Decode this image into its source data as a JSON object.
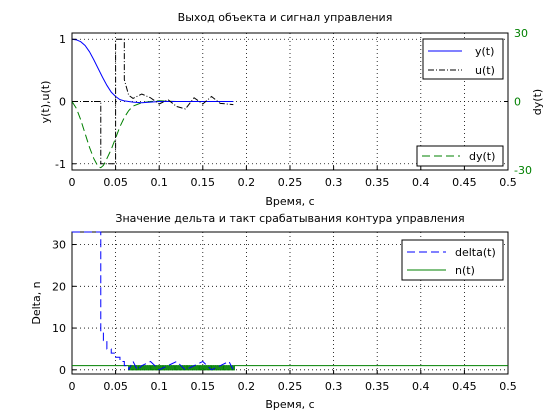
{
  "chart_data": [
    {
      "type": "line",
      "title": "Выход объекта и сигнал управления",
      "xlabel": "Время, с",
      "ylabel": "y(t),u(t)",
      "y2label": "dy(t)",
      "xlim": [
        0,
        0.5
      ],
      "ylim": [
        -1.1,
        1.1
      ],
      "y2lim": [
        -30,
        30
      ],
      "xticks": [
        "0",
        "0.05",
        "0.1",
        "0.15",
        "0.2",
        "0.25",
        "0.3",
        "0.35",
        "0.4",
        "0.45",
        "0.5"
      ],
      "yticks": [
        "-1",
        "0",
        "1"
      ],
      "y2ticks": [
        "-30",
        "0",
        "30"
      ],
      "grid": true,
      "legend_position": "top-right",
      "legend2_position": "bottom-right",
      "colors": {
        "y": "#0000ff",
        "u": "#000000",
        "dy": "#008000",
        "ylabel": "#0000ff",
        "y2label": "#008000"
      },
      "series": [
        {
          "name": "y(t)",
          "axis": "left",
          "x": [
            0,
            0.005,
            0.01,
            0.015,
            0.02,
            0.025,
            0.03,
            0.035,
            0.04,
            0.045,
            0.05,
            0.055,
            0.06,
            0.065,
            0.07,
            0.08,
            0.09,
            0.1,
            0.12,
            0.15,
            0.185
          ],
          "y": [
            1.0,
            0.99,
            0.96,
            0.9,
            0.8,
            0.67,
            0.53,
            0.39,
            0.26,
            0.15,
            0.08,
            0.03,
            0.01,
            0.0,
            -0.01,
            -0.02,
            -0.01,
            0.0,
            0.0,
            0.0,
            0.0
          ]
        },
        {
          "name": "u(t)",
          "axis": "left",
          "x": [
            0,
            0.033,
            0.033,
            0.05,
            0.05,
            0.06,
            0.06,
            0.065,
            0.07,
            0.08,
            0.09,
            0.1,
            0.11,
            0.12,
            0.13,
            0.14,
            0.15,
            0.16,
            0.17,
            0.185
          ],
          "y": [
            0,
            0,
            -1.0,
            -1.0,
            1.0,
            1.0,
            0.35,
            0.1,
            0.05,
            0.12,
            0.06,
            -0.04,
            0.03,
            -0.08,
            -0.12,
            0.06,
            -0.04,
            0.08,
            -0.03,
            -0.05
          ]
        },
        {
          "name": "dy(t)",
          "axis": "right",
          "x": [
            0,
            0.005,
            0.01,
            0.015,
            0.02,
            0.025,
            0.03,
            0.033,
            0.036,
            0.04,
            0.045,
            0.05,
            0.055,
            0.06,
            0.065,
            0.07,
            0.08,
            0.09,
            0.1,
            0.12,
            0.15,
            0.185
          ],
          "y": [
            0,
            -3,
            -8,
            -14,
            -20,
            -25,
            -28.5,
            -29,
            -28,
            -25,
            -21,
            -16,
            -11,
            -7,
            -4,
            -2,
            -0.5,
            0,
            0.3,
            0,
            0,
            0
          ]
        }
      ]
    },
    {
      "type": "line",
      "title": "Значение дельта и такт срабатывания контура управления",
      "xlabel": "Время, с",
      "ylabel": "Delta, n",
      "xlim": [
        0,
        0.5
      ],
      "ylim": [
        -1,
        33
      ],
      "xticks": [
        "0",
        "0.05",
        "0.1",
        "0.15",
        "0.2",
        "0.25",
        "0.3",
        "0.35",
        "0.4",
        "0.45",
        "0.5"
      ],
      "yticks": [
        "0",
        "10",
        "20",
        "30"
      ],
      "grid": true,
      "legend_position": "top-right",
      "colors": {
        "delta": "#0000ff",
        "n": "#008000"
      },
      "series": [
        {
          "name": "delta(t)",
          "style": "step-dashed",
          "x": [
            0,
            0.033,
            0.033,
            0.036,
            0.036,
            0.04,
            0.04,
            0.045,
            0.045,
            0.05,
            0.05,
            0.055,
            0.055,
            0.06,
            0.06,
            0.065,
            0.065,
            0.07,
            0.075,
            0.08,
            0.09,
            0.1,
            0.11,
            0.12,
            0.13,
            0.14,
            0.15,
            0.16,
            0.17,
            0.18,
            0.185
          ],
          "y": [
            33,
            33,
            9,
            9,
            7,
            7,
            5,
            5,
            4,
            4,
            3,
            3,
            2,
            2,
            1,
            1,
            0,
            2,
            0,
            1,
            2,
            0,
            1,
            2,
            0,
            1,
            2,
            0,
            1,
            2,
            0
          ]
        },
        {
          "name": "n(t)",
          "style": "solid",
          "baseline": 1,
          "pulse_range": [
            0.065,
            0.185
          ],
          "pulse_step": 0.0025
        }
      ]
    }
  ]
}
